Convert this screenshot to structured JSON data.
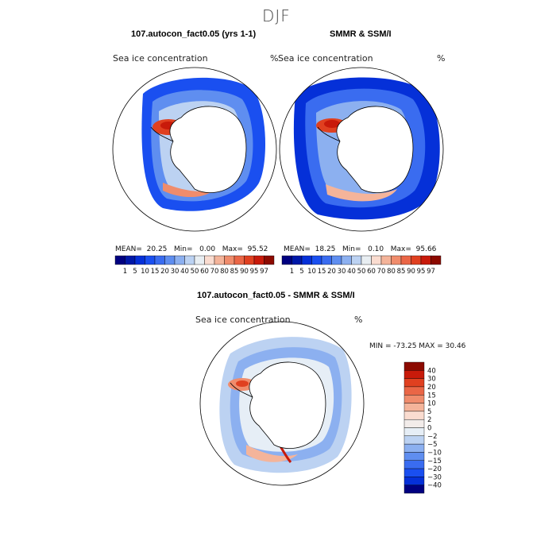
{
  "figure": {
    "title": "DJF"
  },
  "chart_data": [
    {
      "type": "heatmap",
      "title": "107.autocon_fact0.05 (yrs 1-1)",
      "variable_label": "Sea ice concentration",
      "unit": "%",
      "projection": "south polar stereographic",
      "stats": {
        "mean_label": "MEAN=",
        "mean": "20.25",
        "min_label": "Min=",
        "min": "0.00",
        "max_label": "Max=",
        "max": "95.52"
      },
      "colorbar": {
        "ticks": [
          "1",
          "5",
          "10",
          "15",
          "20",
          "30",
          "40",
          "50",
          "60",
          "70",
          "80",
          "85",
          "90",
          "95",
          "97"
        ],
        "colors": [
          "#000080",
          "#0018a8",
          "#0530d8",
          "#1a4ff0",
          "#3a6cf0",
          "#5f8ef0",
          "#8cb0f0",
          "#bcd2f2",
          "#e8eef2",
          "#fadcd0",
          "#f4b49a",
          "#f08c6c",
          "#ea6646",
          "#e04020",
          "#c81a0a",
          "#8c0a00"
        ]
      }
    },
    {
      "type": "heatmap",
      "title": "SMMR & SSM/I",
      "variable_label": "Sea ice concentration",
      "unit": "%",
      "projection": "south polar stereographic",
      "stats": {
        "mean_label": "MEAN=",
        "mean": "18.25",
        "min_label": "Min=",
        "min": "0.10",
        "max_label": "Max=",
        "max": "95.66"
      },
      "colorbar": {
        "ticks": [
          "1",
          "5",
          "10",
          "15",
          "20",
          "30",
          "40",
          "50",
          "60",
          "70",
          "80",
          "85",
          "90",
          "95",
          "97"
        ],
        "colors": [
          "#000080",
          "#0018a8",
          "#0530d8",
          "#1a4ff0",
          "#3a6cf0",
          "#5f8ef0",
          "#8cb0f0",
          "#bcd2f2",
          "#e8eef2",
          "#fadcd0",
          "#f4b49a",
          "#f08c6c",
          "#ea6646",
          "#e04020",
          "#c81a0a",
          "#8c0a00"
        ]
      }
    },
    {
      "type": "heatmap",
      "title": "107.autocon_fact0.05 - SMMR & SSM/I",
      "variable_label": "Sea ice concentration",
      "unit": "%",
      "projection": "south polar stereographic",
      "stats_text": "MIN = -73.25 MAX =  30.46",
      "min": -73.25,
      "max": 30.46,
      "colorbar": {
        "ticks": [
          "40",
          "30",
          "20",
          "15",
          "10",
          "5",
          "2",
          "0",
          "−2",
          "−5",
          "−10",
          "−15",
          "−20",
          "−30",
          "−40"
        ],
        "colors": [
          "#8c0a00",
          "#c81a0a",
          "#e04020",
          "#ea6646",
          "#f08c6c",
          "#f4b49a",
          "#fadcd0",
          "#f2ecea",
          "#e6eef6",
          "#bcd2f2",
          "#8cb0f0",
          "#5f8ef0",
          "#3a6cf0",
          "#1a4ff0",
          "#0530d8",
          "#000080"
        ]
      }
    }
  ]
}
